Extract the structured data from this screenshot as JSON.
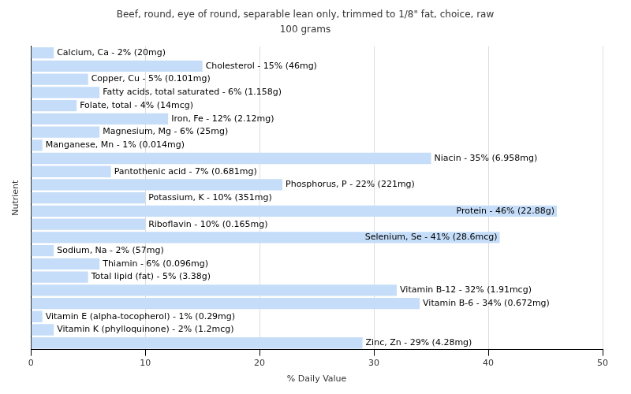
{
  "chart_data": {
    "type": "bar",
    "orientation": "horizontal",
    "title": "Beef, round, eye of round, separable lean only, trimmed to 1/8\" fat, choice, raw",
    "subtitle": "100 grams",
    "x_label": "% Daily Value",
    "y_label": "Nutrient",
    "categories": [
      null,
      null,
      null,
      null,
      null,
      null,
      null,
      null,
      null,
      null,
      null,
      null,
      null,
      null,
      null,
      null,
      null,
      null,
      null,
      null,
      null,
      null,
      null
    ],
    "values": [
      2,
      15,
      5,
      6,
      4,
      12,
      6,
      1,
      35,
      7,
      22,
      10,
      46,
      10,
      41,
      2,
      6,
      5,
      32,
      34,
      1,
      2,
      29
    ],
    "value_labels": [
      "Calcium, Ca - 2% (20mg)",
      "Cholesterol - 15% (46mg)",
      "Copper, Cu - 5% (0.101mg)",
      "Fatty acids, total saturated - 6% (1.158g)",
      "Folate, total - 4% (14mcg)",
      "Iron, Fe - 12% (2.12mg)",
      "Magnesium, Mg - 6% (25mg)",
      "Manganese, Mn - 1% (0.014mg)",
      "Niacin - 35% (6.958mg)",
      "Pantothenic acid - 7% (0.681mg)",
      "Phosphorus, P - 22% (221mg)",
      "Potassium, K - 10% (351mg)",
      "Protein - 46% (22.88g)",
      "Riboflavin - 10% (0.165mg)",
      "Selenium, Se - 41% (28.6mcg)",
      "Sodium, Na - 2% (57mg)",
      "Thiamin - 6% (0.096mg)",
      "Total lipid (fat) - 5% (3.38g)",
      "Vitamin B-12 - 32% (1.91mcg)",
      "Vitamin B-6 - 34% (0.672mg)",
      "Vitamin E (alpha-tocopherol) - 1% (0.29mg)",
      "Vitamin K (phylloquinone) - 2% (1.2mcg)",
      "Zinc, Zn - 29% (4.28mg)"
    ],
    "data_labels": true,
    "tick_labels": "x",
    "color": "#c5ddf8",
    "xlim": [
      0,
      50
    ],
    "xticks": [
      0,
      10,
      20,
      30,
      40,
      50
    ],
    "grid": true
  }
}
